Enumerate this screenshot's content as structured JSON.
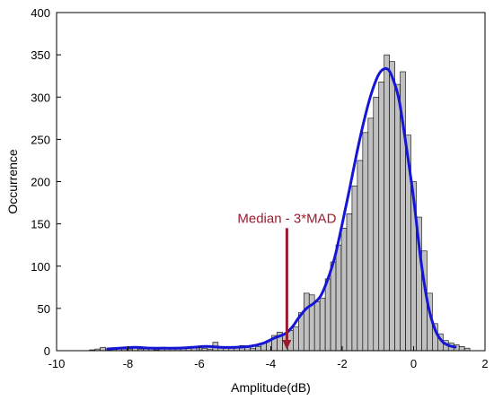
{
  "chart_data": {
    "type": "bar",
    "xlabel": "Amplitude(dB)",
    "ylabel": "Occurrence",
    "xlim": [
      -10,
      2
    ],
    "ylim": [
      0,
      400
    ],
    "xticks": [
      -10,
      -8,
      -6,
      -4,
      -2,
      0,
      2
    ],
    "yticks": [
      0,
      50,
      100,
      150,
      200,
      250,
      300,
      350,
      400
    ],
    "grid": false,
    "legend": "none",
    "colors": {
      "bar_fill": "#c0c0c0",
      "bar_edge": "#000000",
      "density": "#1515d6",
      "annotation": "#9a1b2e"
    },
    "bin_width": 0.15,
    "bins": [
      {
        "x": -9.0,
        "y": 1
      },
      {
        "x": -8.85,
        "y": 2
      },
      {
        "x": -8.7,
        "y": 4
      },
      {
        "x": -8.55,
        "y": 2
      },
      {
        "x": -8.4,
        "y": 3
      },
      {
        "x": -8.25,
        "y": 2
      },
      {
        "x": -8.1,
        "y": 2
      },
      {
        "x": -7.95,
        "y": 2
      },
      {
        "x": -7.8,
        "y": 3
      },
      {
        "x": -7.65,
        "y": 2
      },
      {
        "x": -7.5,
        "y": 2
      },
      {
        "x": -7.35,
        "y": 2
      },
      {
        "x": -7.2,
        "y": 1
      },
      {
        "x": -7.05,
        "y": 2
      },
      {
        "x": -6.9,
        "y": 2
      },
      {
        "x": -6.75,
        "y": 2
      },
      {
        "x": -6.6,
        "y": 3
      },
      {
        "x": -6.45,
        "y": 3
      },
      {
        "x": -6.3,
        "y": 3
      },
      {
        "x": -6.15,
        "y": 3
      },
      {
        "x": -6.0,
        "y": 4
      },
      {
        "x": -5.85,
        "y": 3
      },
      {
        "x": -5.7,
        "y": 2
      },
      {
        "x": -5.55,
        "y": 10
      },
      {
        "x": -5.4,
        "y": 3
      },
      {
        "x": -5.25,
        "y": 3
      },
      {
        "x": -5.1,
        "y": 3
      },
      {
        "x": -4.95,
        "y": 3
      },
      {
        "x": -4.8,
        "y": 6
      },
      {
        "x": -4.65,
        "y": 4
      },
      {
        "x": -4.5,
        "y": 3
      },
      {
        "x": -4.35,
        "y": 5
      },
      {
        "x": -4.2,
        "y": 9
      },
      {
        "x": -4.05,
        "y": 12
      },
      {
        "x": -3.9,
        "y": 18
      },
      {
        "x": -3.75,
        "y": 22
      },
      {
        "x": -3.6,
        "y": 20
      },
      {
        "x": -3.45,
        "y": 24
      },
      {
        "x": -3.3,
        "y": 28
      },
      {
        "x": -3.15,
        "y": 45
      },
      {
        "x": -3.0,
        "y": 68
      },
      {
        "x": -2.85,
        "y": 66
      },
      {
        "x": -2.7,
        "y": 58
      },
      {
        "x": -2.55,
        "y": 62
      },
      {
        "x": -2.4,
        "y": 85
      },
      {
        "x": -2.25,
        "y": 105
      },
      {
        "x": -2.1,
        "y": 125
      },
      {
        "x": -1.95,
        "y": 145
      },
      {
        "x": -1.8,
        "y": 162
      },
      {
        "x": -1.65,
        "y": 195
      },
      {
        "x": -1.5,
        "y": 225
      },
      {
        "x": -1.35,
        "y": 258
      },
      {
        "x": -1.2,
        "y": 275
      },
      {
        "x": -1.05,
        "y": 300
      },
      {
        "x": -0.9,
        "y": 318
      },
      {
        "x": -0.75,
        "y": 350
      },
      {
        "x": -0.6,
        "y": 342
      },
      {
        "x": -0.45,
        "y": 315
      },
      {
        "x": -0.3,
        "y": 330
      },
      {
        "x": -0.15,
        "y": 255
      },
      {
        "x": 0.0,
        "y": 200
      },
      {
        "x": 0.15,
        "y": 158
      },
      {
        "x": 0.3,
        "y": 118
      },
      {
        "x": 0.45,
        "y": 68
      },
      {
        "x": 0.6,
        "y": 32
      },
      {
        "x": 0.75,
        "y": 20
      },
      {
        "x": 0.9,
        "y": 12
      },
      {
        "x": 1.05,
        "y": 9
      },
      {
        "x": 1.2,
        "y": 7
      },
      {
        "x": 1.35,
        "y": 5
      },
      {
        "x": 1.5,
        "y": 3
      }
    ],
    "density_curve": {
      "x": [
        -8.6,
        -8.2,
        -7.8,
        -7.4,
        -7.0,
        -6.6,
        -6.2,
        -5.8,
        -5.4,
        -5.0,
        -4.6,
        -4.2,
        -3.9,
        -3.6,
        -3.4,
        -3.2,
        -3.0,
        -2.8,
        -2.6,
        -2.4,
        -2.2,
        -2.0,
        -1.8,
        -1.6,
        -1.4,
        -1.2,
        -1.0,
        -0.85,
        -0.7,
        -0.55,
        -0.4,
        -0.2,
        0.0,
        0.2,
        0.4,
        0.6,
        0.8,
        1.0,
        1.2
      ],
      "y": [
        2,
        3,
        4,
        3,
        3,
        3,
        4,
        5,
        4,
        4,
        5,
        9,
        15,
        20,
        28,
        40,
        50,
        56,
        65,
        85,
        112,
        150,
        190,
        232,
        270,
        302,
        325,
        333,
        332,
        318,
        295,
        240,
        180,
        108,
        55,
        25,
        11,
        6,
        4
      ]
    },
    "annotation": {
      "text": "Median - 3*MAD",
      "x": -3.55,
      "y_from": 145,
      "y_to": 0
    }
  }
}
